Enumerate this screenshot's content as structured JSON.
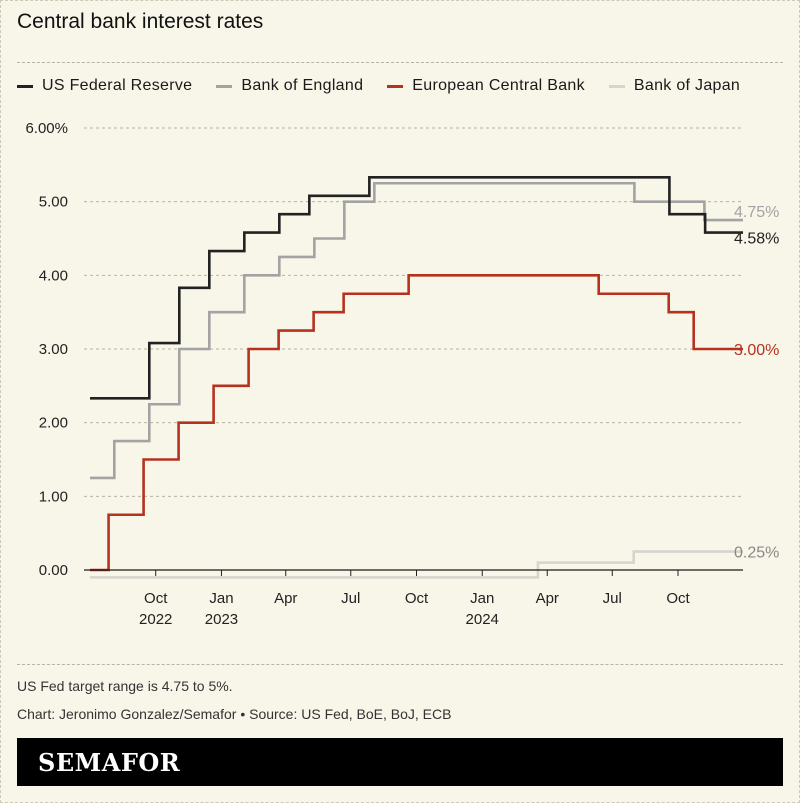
{
  "title": "Central bank interest rates",
  "notes": {
    "range": "US Fed target range is 4.75 to 5%.",
    "credit": "Chart: Jeronimo Gonzalez/Semafor • Source: US Fed, BoE, BoJ, ECB"
  },
  "brand": "SEMAFOR",
  "chart_data": {
    "type": "line",
    "step": true,
    "ylim": [
      0,
      6
    ],
    "yticks": [
      {
        "value": 0,
        "label": "0.00"
      },
      {
        "value": 1,
        "label": "1.00"
      },
      {
        "value": 2,
        "label": "2.00"
      },
      {
        "value": 3,
        "label": "3.00"
      },
      {
        "value": 4,
        "label": "4.00"
      },
      {
        "value": 5,
        "label": "5.00"
      },
      {
        "value": 6,
        "label": "6.00%"
      }
    ],
    "xlim": [
      "2022-07-01",
      "2024-12-31"
    ],
    "xticks": [
      {
        "date": "2022-10-01",
        "label": "Oct",
        "sublabel": "2022"
      },
      {
        "date": "2023-01-01",
        "label": "Jan",
        "sublabel": "2023"
      },
      {
        "date": "2023-04-01",
        "label": "Apr",
        "sublabel": ""
      },
      {
        "date": "2023-07-01",
        "label": "Jul",
        "sublabel": ""
      },
      {
        "date": "2023-10-01",
        "label": "Oct",
        "sublabel": ""
      },
      {
        "date": "2024-01-01",
        "label": "Jan",
        "sublabel": "2024"
      },
      {
        "date": "2024-04-01",
        "label": "Apr",
        "sublabel": ""
      },
      {
        "date": "2024-07-01",
        "label": "Jul",
        "sublabel": ""
      },
      {
        "date": "2024-10-01",
        "label": "Oct",
        "sublabel": ""
      }
    ],
    "grid": true,
    "legend": "top",
    "series": [
      {
        "name": "Bank of Japan",
        "color": "#d6d4cc",
        "steps": [
          [
            "2022-07-01",
            -0.1
          ],
          [
            "2024-03-19",
            0.1
          ],
          [
            "2024-07-31",
            0.25
          ]
        ],
        "end": "2024-12-31",
        "end_label": "0.25%"
      },
      {
        "name": "Bank of England",
        "color": "#a3a3a3",
        "steps": [
          [
            "2022-07-01",
            1.25
          ],
          [
            "2022-08-04",
            1.75
          ],
          [
            "2022-09-22",
            2.25
          ],
          [
            "2022-11-03",
            3.0
          ],
          [
            "2022-12-15",
            3.5
          ],
          [
            "2023-02-02",
            4.0
          ],
          [
            "2023-03-23",
            4.25
          ],
          [
            "2023-05-11",
            4.5
          ],
          [
            "2023-06-22",
            5.0
          ],
          [
            "2023-08-03",
            5.25
          ],
          [
            "2024-08-01",
            5.0
          ],
          [
            "2024-11-07",
            4.75
          ]
        ],
        "end": "2024-12-31",
        "end_label": "4.75%"
      },
      {
        "name": "European Central Bank",
        "color": "#b5321f",
        "steps": [
          [
            "2022-07-01",
            0.0
          ],
          [
            "2022-07-27",
            0.75
          ],
          [
            "2022-09-14",
            1.5
          ],
          [
            "2022-11-02",
            2.0
          ],
          [
            "2022-12-21",
            2.5
          ],
          [
            "2023-02-08",
            3.0
          ],
          [
            "2023-03-22",
            3.25
          ],
          [
            "2023-05-10",
            3.5
          ],
          [
            "2023-06-21",
            3.75
          ],
          [
            "2023-08-02",
            3.75
          ],
          [
            "2023-09-20",
            4.0
          ],
          [
            "2024-06-12",
            3.75
          ],
          [
            "2024-09-18",
            3.5
          ],
          [
            "2024-10-23",
            3.0
          ]
        ],
        "end": "2024-12-31",
        "end_label": "3.00%"
      },
      {
        "name": "US Federal Reserve",
        "color": "#222222",
        "steps": [
          [
            "2022-07-01",
            2.33
          ],
          [
            "2022-07-28",
            2.33
          ],
          [
            "2022-09-22",
            3.08
          ],
          [
            "2022-11-03",
            3.83
          ],
          [
            "2022-12-15",
            4.33
          ],
          [
            "2023-02-02",
            4.58
          ],
          [
            "2023-03-23",
            4.83
          ],
          [
            "2023-05-04",
            5.08
          ],
          [
            "2023-07-27",
            5.33
          ],
          [
            "2024-09-19",
            4.83
          ],
          [
            "2024-11-08",
            4.58
          ]
        ],
        "end": "2024-12-31",
        "end_label": "4.58%"
      }
    ],
    "legend_order": [
      "US Federal Reserve",
      "Bank of England",
      "European Central Bank",
      "Bank of Japan"
    ]
  }
}
